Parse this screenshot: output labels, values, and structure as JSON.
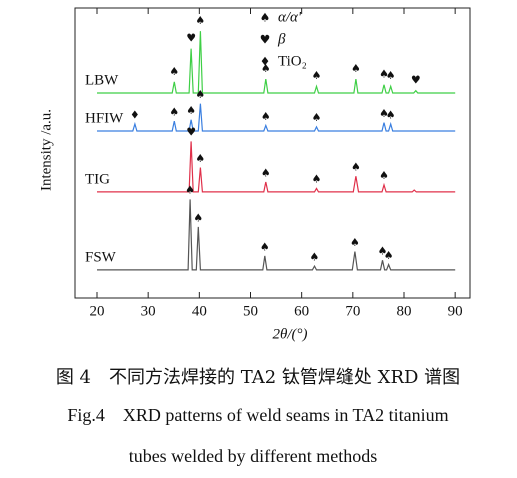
{
  "chart_data": {
    "type": "line",
    "xlabel": "2θ/(°)",
    "ylabel": "Intensity /a.u.",
    "xlim": [
      15.7,
      92.9
    ],
    "ylim": [
      0,
      100
    ],
    "xticks": [
      20,
      30,
      40,
      50,
      60,
      70,
      80,
      90
    ],
    "legend": [
      {
        "symbol": "♠",
        "name": "α/α'"
      },
      {
        "symbol": "♥",
        "name": "β"
      },
      {
        "symbol": "♦",
        "name": "TiO₂"
      }
    ],
    "series": [
      {
        "name": "LBW",
        "color": "#3fcf46",
        "x": [
          20,
          34.7,
          35.1,
          35.5,
          38.0,
          38.4,
          38.8,
          39.8,
          40.2,
          40.6,
          52.6,
          53.0,
          53.4,
          62.5,
          62.9,
          63.3,
          70.2,
          70.6,
          71.0,
          75.7,
          76.1,
          76.5,
          77.0,
          77.4,
          77.8,
          81.9,
          82.3,
          82.7,
          90
        ],
        "values": [
          70.7,
          70.7,
          74.5,
          70.7,
          70.7,
          86,
          70.7,
          70.7,
          92,
          70.7,
          70.7,
          75.5,
          70.7,
          70.7,
          73,
          70.7,
          70.7,
          75.5,
          70.7,
          70.7,
          73.5,
          70.7,
          70.7,
          73,
          70.7,
          70.7,
          71.5,
          70.7,
          70.7
        ],
        "markers": [
          {
            "x": 35.1,
            "y": 78,
            "symbol": "♠"
          },
          {
            "x": 38.4,
            "y": 89.5,
            "symbol": "♥"
          },
          {
            "x": 40.2,
            "y": 95.5,
            "symbol": "♠"
          },
          {
            "x": 53.0,
            "y": 79,
            "symbol": "♠"
          },
          {
            "x": 62.9,
            "y": 76.5,
            "symbol": "♠"
          },
          {
            "x": 70.6,
            "y": 79,
            "symbol": "♠"
          },
          {
            "x": 76.1,
            "y": 77,
            "symbol": "♠"
          },
          {
            "x": 77.4,
            "y": 76.5,
            "symbol": "♠"
          },
          {
            "x": 82.3,
            "y": 75,
            "symbol": "♥"
          }
        ]
      },
      {
        "name": "HFIW",
        "color": "#3a7fe0",
        "x": [
          20,
          27.0,
          27.4,
          27.8,
          34.7,
          35.1,
          35.5,
          38.0,
          38.4,
          38.8,
          39.8,
          40.2,
          40.6,
          52.6,
          53.0,
          53.4,
          62.5,
          62.9,
          63.3,
          75.7,
          76.1,
          76.5,
          77.0,
          77.4,
          77.8,
          90
        ],
        "values": [
          57.6,
          57.6,
          60,
          57.6,
          57.6,
          61,
          57.6,
          57.6,
          61.5,
          57.6,
          57.6,
          67,
          57.6,
          57.6,
          59.5,
          57.6,
          57.6,
          59,
          57.6,
          57.6,
          60.5,
          57.6,
          57.6,
          60,
          57.6,
          57.6
        ],
        "markers": [
          {
            "x": 27.4,
            "y": 63,
            "symbol": "♦"
          },
          {
            "x": 35.1,
            "y": 64,
            "symbol": "♠"
          },
          {
            "x": 38.4,
            "y": 64.5,
            "symbol": "♠"
          },
          {
            "x": 40.2,
            "y": 70,
            "symbol": "♠"
          },
          {
            "x": 53.0,
            "y": 62.5,
            "symbol": "♠"
          },
          {
            "x": 62.9,
            "y": 62,
            "symbol": "♠"
          },
          {
            "x": 76.1,
            "y": 63.5,
            "symbol": "♠"
          },
          {
            "x": 77.4,
            "y": 63,
            "symbol": "♠"
          }
        ]
      },
      {
        "name": "TIG",
        "color": "#e0304a",
        "x": [
          20,
          38.0,
          38.4,
          38.8,
          39.8,
          40.2,
          40.6,
          52.6,
          53.0,
          53.4,
          62.5,
          62.9,
          63.3,
          70.1,
          70.6,
          71.1,
          75.7,
          76.1,
          76.5,
          81.6,
          82.0,
          82.4,
          90
        ],
        "values": [
          36.6,
          36.6,
          54,
          36.6,
          36.6,
          45,
          36.6,
          36.6,
          40,
          36.6,
          36.6,
          37.8,
          36.6,
          36.6,
          42,
          36.6,
          36.6,
          39,
          36.6,
          36.6,
          37.2,
          36.6,
          36.6
        ],
        "markers": [
          {
            "x": 38.4,
            "y": 57,
            "symbol": "♥"
          },
          {
            "x": 40.2,
            "y": 48,
            "symbol": "♠"
          },
          {
            "x": 53.0,
            "y": 43,
            "symbol": "♠"
          },
          {
            "x": 62.9,
            "y": 40.8,
            "symbol": "♠"
          },
          {
            "x": 70.6,
            "y": 45,
            "symbol": "♠"
          },
          {
            "x": 76.1,
            "y": 42,
            "symbol": "♠"
          }
        ]
      },
      {
        "name": "FSW",
        "color": "#555555",
        "x": [
          20,
          37.8,
          38.2,
          38.6,
          39.4,
          39.8,
          40.2,
          52.4,
          52.8,
          53.2,
          62.1,
          62.5,
          62.9,
          69.9,
          70.4,
          70.9,
          75.4,
          75.8,
          76.2,
          76.6,
          77.0,
          77.4,
          90
        ],
        "values": [
          9.7,
          9.7,
          34,
          9.7,
          9.7,
          24.5,
          9.7,
          9.7,
          14.5,
          9.7,
          9.7,
          11,
          9.7,
          9.7,
          16,
          9.7,
          9.7,
          13,
          9.7,
          9.7,
          11.5,
          9.7,
          9.7
        ],
        "markers": [
          {
            "x": 38.2,
            "y": 37,
            "symbol": "♠"
          },
          {
            "x": 39.8,
            "y": 27.5,
            "symbol": "♠"
          },
          {
            "x": 52.8,
            "y": 17.5,
            "symbol": "♠"
          },
          {
            "x": 62.5,
            "y": 14,
            "symbol": "♠"
          },
          {
            "x": 70.4,
            "y": 19,
            "symbol": "♠"
          },
          {
            "x": 75.8,
            "y": 16,
            "symbol": "♠"
          },
          {
            "x": 77.0,
            "y": 14.5,
            "symbol": "♠"
          }
        ]
      }
    ]
  },
  "caption": {
    "zh": "图 4　不同方法焊接的 TA2 钛管焊缝处 XRD 谱图",
    "en": [
      "Fig.4　XRD patterns of weld seams in TA2 titanium",
      "tubes welded by different methods"
    ]
  }
}
